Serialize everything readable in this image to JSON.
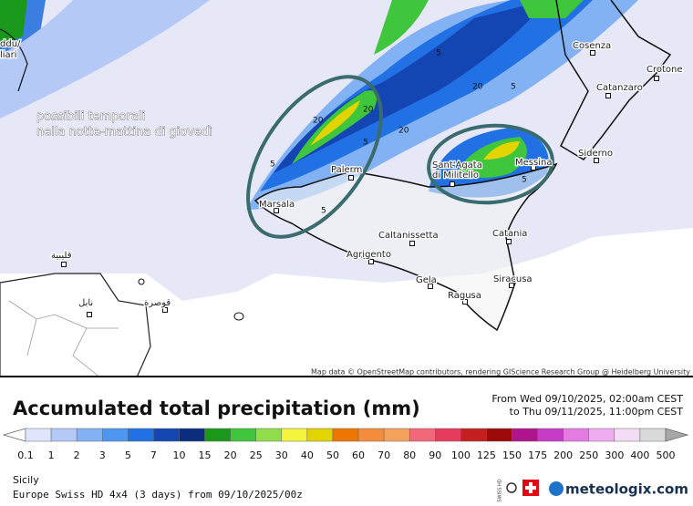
{
  "map": {
    "annotation": [
      "possibili temporali",
      "nella notte-mattina di giovedì"
    ],
    "cities": [
      "Cosenza",
      "Crotone",
      "Catanzaro",
      "Siderno",
      "Messina",
      "Sant'Agata",
      "di Militello",
      "Palerm",
      "Marsala",
      "Caltanissetta",
      "Catania",
      "Agrigento",
      "Gela",
      "Siracusa",
      "Ragusa",
      "ddu/",
      "liari",
      "قليبية",
      "نابل",
      "قوصرة"
    ],
    "contour_labels": [
      "5",
      "20",
      "20",
      "20",
      "5",
      "5",
      "5",
      "5",
      "20",
      "5"
    ],
    "attribution": "Map data © OpenStreetMap contributors, rendering GIScience Research Group @ Heidelberg University"
  },
  "legend": {
    "title": "Accumulated total precipitation (mm)",
    "from": "From Wed 09/10/2025, 02:00am CEST",
    "to": "to Thu 09/11/2025, 11:00pm CEST",
    "ticks": [
      0.1,
      1,
      2,
      3,
      5,
      7,
      10,
      15,
      20,
      25,
      30,
      40,
      50,
      60,
      70,
      80,
      90,
      100,
      125,
      150,
      175,
      200,
      250,
      300,
      400,
      500
    ],
    "colors": [
      "#dfe5fa",
      "#b5c9f7",
      "#83b2f4",
      "#4e96ef",
      "#2170e4",
      "#1346b2",
      "#0b2d7e",
      "#1a981c",
      "#3fc63c",
      "#92dd4a",
      "#f4f43c",
      "#e2d400",
      "#ef7600",
      "#f48c3c",
      "#f4a25c",
      "#f36878",
      "#e43c5a",
      "#c51e1e",
      "#9e0a0a",
      "#b0148c",
      "#c63cc6",
      "#e47ae4",
      "#efabef",
      "#f5dcf5",
      "#dadada"
    ],
    "under_color": "#ffffff",
    "over_color": "#a8a8a8"
  },
  "footer": {
    "region": "Sicily",
    "model": "Europe Swiss HD 4x4 (3 days)  from 09/10/2025/00z",
    "badge": "SWISS HD",
    "brand": "meteologix.com"
  }
}
